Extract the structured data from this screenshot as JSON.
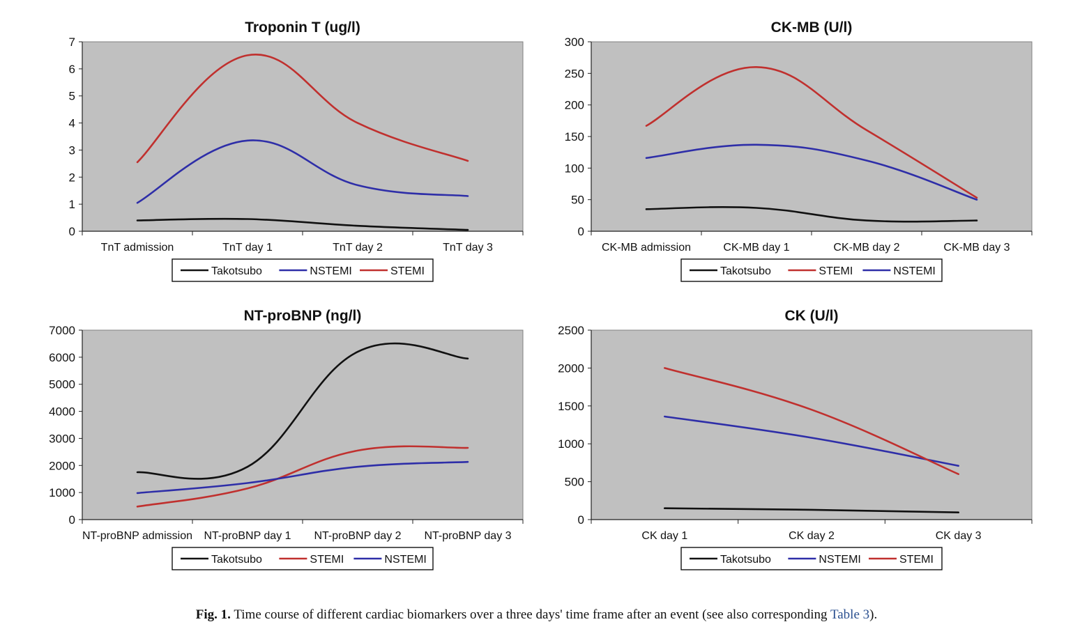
{
  "colors": {
    "plot_bg": "#c0c0c0",
    "takotsubo": "#111111",
    "nstemi": "#2e2ea8",
    "stemi": "#c0302e",
    "caption_ref": "#2a4f8f"
  },
  "chart_data": [
    {
      "type": "line",
      "title": "Troponin T (ug/l)",
      "categories": [
        "TnT admission",
        "TnT day 1",
        "TnT day 2",
        "TnT day 3"
      ],
      "ylim": [
        0,
        7
      ],
      "yticks": [
        0,
        1,
        2,
        3,
        4,
        5,
        6,
        7
      ],
      "series": [
        {
          "name": "Takotsubo",
          "color_key": "takotsubo",
          "values": [
            0.4,
            0.45,
            0.2,
            0.05
          ]
        },
        {
          "name": "NSTEMI",
          "color_key": "nstemi",
          "values": [
            1.05,
            3.35,
            1.7,
            1.3
          ]
        },
        {
          "name": "STEMI",
          "color_key": "stemi",
          "values": [
            2.55,
            6.5,
            4.0,
            2.6
          ]
        }
      ],
      "legend_order": [
        "Takotsubo",
        "NSTEMI",
        "STEMI"
      ],
      "legend_position": "bottom"
    },
    {
      "type": "line",
      "title": "CK-MB (U/l)",
      "categories": [
        "CK-MB admission",
        "CK-MB day 1",
        "CK-MB day 2",
        "CK-MB day 3"
      ],
      "ylim": [
        0,
        300
      ],
      "yticks": [
        0,
        50,
        100,
        150,
        200,
        250,
        300
      ],
      "series": [
        {
          "name": "Takotsubo",
          "color_key": "takotsubo",
          "values": [
            35,
            37,
            17,
            17
          ]
        },
        {
          "name": "STEMI",
          "color_key": "stemi",
          "values": [
            167,
            260,
            160,
            53
          ]
        },
        {
          "name": "NSTEMI",
          "color_key": "nstemi",
          "values": [
            116,
            137,
            112,
            50
          ]
        }
      ],
      "legend_order": [
        "Takotsubo",
        "STEMI",
        "NSTEMI"
      ],
      "legend_position": "bottom"
    },
    {
      "type": "line",
      "title": "NT-proBNP (ng/l)",
      "categories": [
        "NT-proBNP admission",
        "NT-proBNP day 1",
        "NT-proBNP day 2",
        "NT-proBNP day 3"
      ],
      "ylim": [
        0,
        7000
      ],
      "yticks": [
        0,
        1000,
        2000,
        3000,
        4000,
        5000,
        6000,
        7000
      ],
      "series": [
        {
          "name": "Takotsubo",
          "color_key": "takotsubo",
          "values": [
            1750,
            1950,
            6200,
            5950
          ]
        },
        {
          "name": "STEMI",
          "color_key": "stemi",
          "values": [
            480,
            1150,
            2550,
            2650
          ]
        },
        {
          "name": "NSTEMI",
          "color_key": "nstemi",
          "values": [
            980,
            1350,
            1950,
            2130
          ]
        }
      ],
      "legend_order": [
        "Takotsubo",
        "STEMI",
        "NSTEMI"
      ],
      "legend_position": "bottom"
    },
    {
      "type": "line",
      "title": "CK (U/l)",
      "categories": [
        "CK day 1",
        "CK day 2",
        "CK day 3"
      ],
      "ylim": [
        0,
        2500
      ],
      "yticks": [
        0,
        500,
        1000,
        1500,
        2000,
        2500
      ],
      "series": [
        {
          "name": "Takotsubo",
          "color_key": "takotsubo",
          "values": [
            150,
            130,
            95
          ]
        },
        {
          "name": "NSTEMI",
          "color_key": "nstemi",
          "values": [
            1360,
            1080,
            710
          ]
        },
        {
          "name": "STEMI",
          "color_key": "stemi",
          "values": [
            2000,
            1450,
            600
          ]
        }
      ],
      "legend_order": [
        "Takotsubo",
        "NSTEMI",
        "STEMI"
      ],
      "legend_position": "bottom"
    }
  ],
  "caption": {
    "label": "Fig. 1.",
    "text": " Time course of different cardiac biomarkers over a three days' time frame after an event (see also corresponding ",
    "ref": "Table 3",
    "end": ")."
  }
}
